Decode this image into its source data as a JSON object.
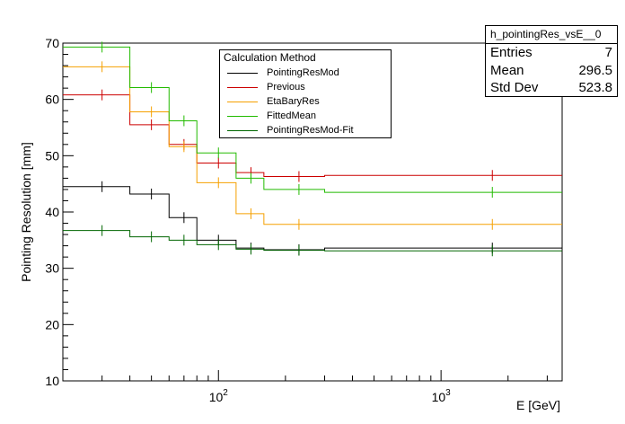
{
  "chart_data": {
    "type": "line",
    "xlabel": "E [GeV]",
    "ylabel": "Pointing Resolution [mm]",
    "xlim": [
      20,
      3500
    ],
    "ylim": [
      10,
      70
    ],
    "xscale": "log",
    "y_ticks": [
      10,
      20,
      30,
      40,
      50,
      60,
      70
    ],
    "x_tick_labels": [
      {
        "value": 100,
        "base": "10",
        "exp": "2"
      },
      {
        "value": 1000,
        "base": "10",
        "exp": "3"
      }
    ],
    "grid": false,
    "legend_placement": "top-center",
    "legend_title": "Calculation Method",
    "bin_edges": [
      20,
      40,
      60,
      80,
      120,
      160,
      300,
      3500
    ],
    "bin_centers": [
      30,
      50,
      70,
      100,
      140,
      230,
      1700
    ],
    "series": [
      {
        "name": "PointingResMod",
        "color": "#000000",
        "values": [
          44.5,
          43.2,
          39.0,
          35.0,
          33.6,
          33.3,
          33.6
        ]
      },
      {
        "name": "Previous",
        "color": "#cc0000",
        "values": [
          60.8,
          55.5,
          52.0,
          48.7,
          47.0,
          46.3,
          46.5
        ]
      },
      {
        "name": "EtaBaryRes",
        "color": "#f5a000",
        "values": [
          65.8,
          57.8,
          51.6,
          45.2,
          39.7,
          37.8,
          37.8
        ]
      },
      {
        "name": "FittedMean",
        "color": "#22bb00",
        "values": [
          69.3,
          62.1,
          56.2,
          50.5,
          46.0,
          44.0,
          43.5
        ]
      },
      {
        "name": "PointingResMod-Fit",
        "color": "#006600",
        "values": [
          36.7,
          35.6,
          35.0,
          34.2,
          33.4,
          33.2,
          33.1
        ]
      }
    ]
  },
  "stats": {
    "title": "h_pointingRes_vsE__0",
    "rows": [
      {
        "label": "Entries",
        "value": "7"
      },
      {
        "label": "Mean",
        "value": "296.5"
      },
      {
        "label": "Std Dev",
        "value": "523.8"
      }
    ]
  }
}
